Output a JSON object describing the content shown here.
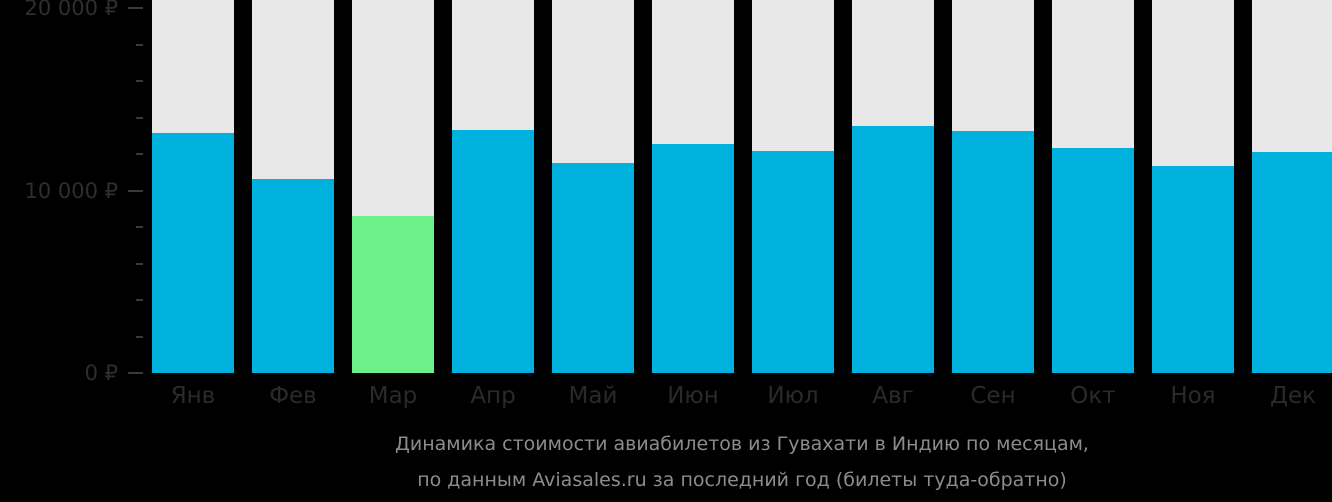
{
  "chart_data": {
    "type": "bar",
    "title": "Динамика стоимости авиабилетов из Гувахати в Индию по месяцам,",
    "subtitle": "по данным Aviasales.ru за последний год (билеты туда-обратно)",
    "xlabel": "",
    "ylabel": "",
    "ylim": [
      0,
      20000
    ],
    "y_ticks": [
      {
        "value": 0,
        "label": "0 ₽"
      },
      {
        "value": 10000,
        "label": "10 000 ₽"
      },
      {
        "value": 20000,
        "label": "20 000 ₽"
      }
    ],
    "minor_tick_step": 2000,
    "categories": [
      "Янв",
      "Фев",
      "Мар",
      "Апр",
      "Май",
      "Июн",
      "Июл",
      "Авг",
      "Сен",
      "Окт",
      "Ноя",
      "Дек"
    ],
    "values": [
      13150,
      10630,
      8600,
      13320,
      11510,
      12550,
      12160,
      13530,
      13260,
      12330,
      11340,
      12110
    ],
    "highlight_index": 2,
    "colors": {
      "bar": "#00b0dd",
      "highlight": "#6df089",
      "track": "#e8e8e8",
      "background": "#000000",
      "axis_text": "#2e2e2e",
      "caption_text": "#8c8c8c"
    },
    "grid": false,
    "legend": null
  }
}
